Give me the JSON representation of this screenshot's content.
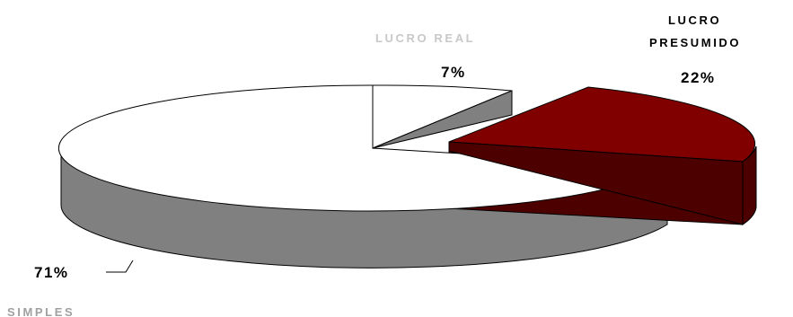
{
  "chart_data": {
    "type": "pie",
    "title": "",
    "style": "3d-exploded",
    "slices": [
      {
        "label": "LUCRO REAL",
        "value": 7,
        "value_label": "7%",
        "color": "#FFFFFF",
        "side_color": "#808080",
        "label_color": "#C8C8C8"
      },
      {
        "label": "LUCRO PRESUMIDO",
        "label_lines": [
          "LUCRO",
          "PRESUMIDO"
        ],
        "value": 22,
        "value_label": "22%",
        "color": "#800000",
        "side_color": "#4D0000",
        "label_color": "#000000"
      },
      {
        "label": "SIMPLES",
        "value": 71,
        "value_label": "71%",
        "color": "#FFFFFF",
        "side_color": "#808080",
        "label_color": "#A0A0A0"
      }
    ]
  }
}
